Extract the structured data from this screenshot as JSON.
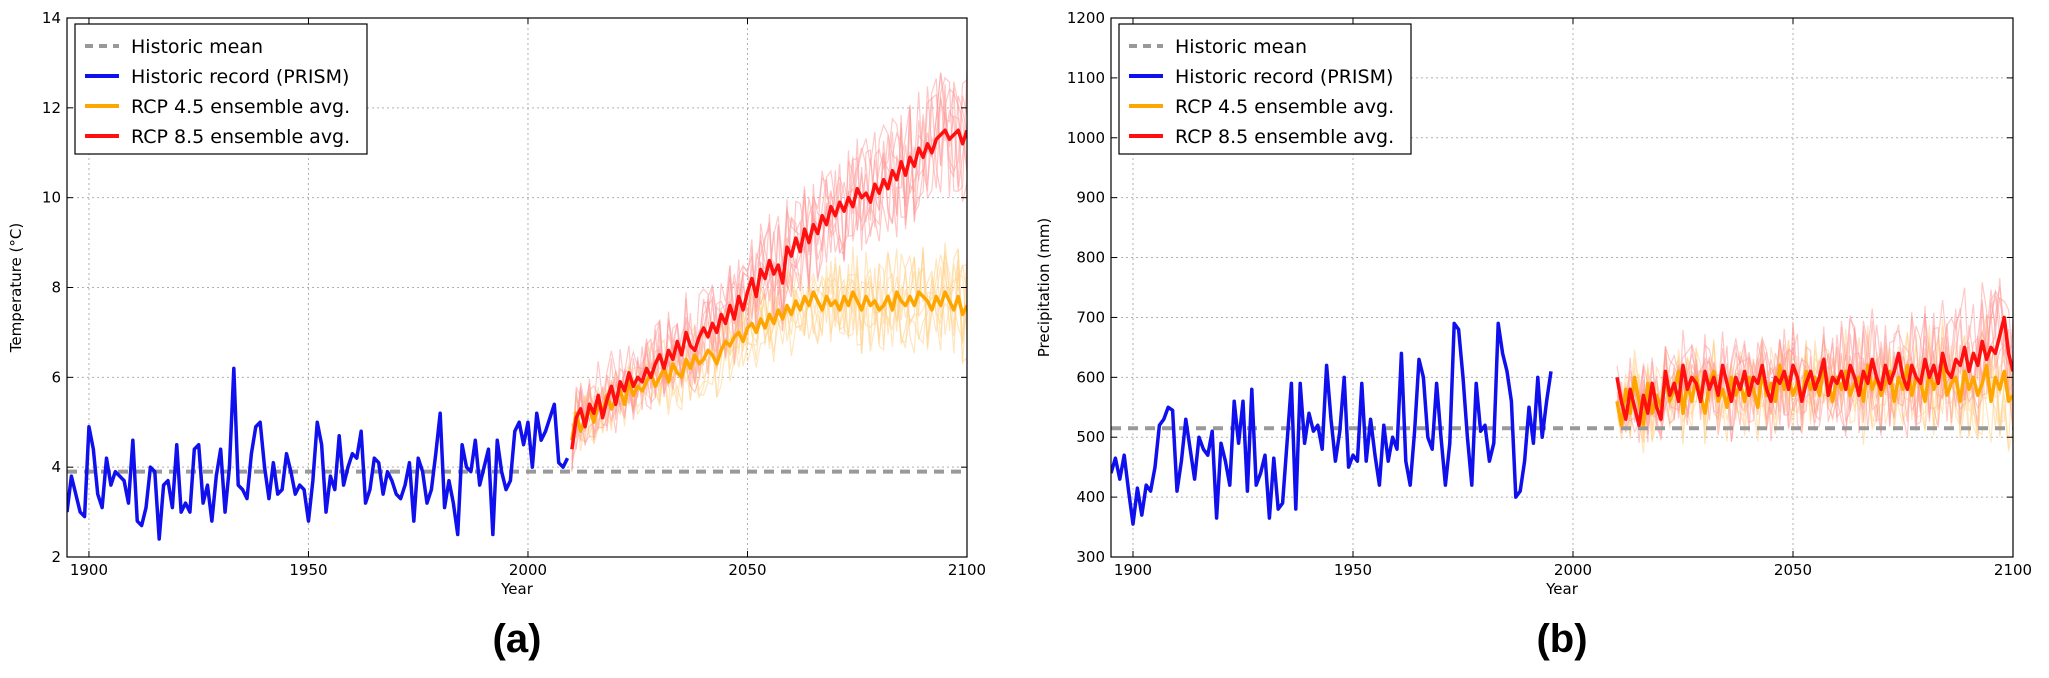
{
  "chart_data": [
    {
      "type": "line",
      "panel_label": "(a)",
      "xlabel": "Year",
      "ylabel": "Temperature (°C)",
      "xlim": [
        1895,
        2100
      ],
      "ylim": [
        2,
        14
      ],
      "xticks": [
        1900,
        1950,
        2000,
        2050,
        2100
      ],
      "yticks": [
        2,
        4,
        6,
        8,
        10,
        12,
        14
      ],
      "grid": true,
      "legend_position": "top-left",
      "colors": {
        "historic_mean": "#999999",
        "historic_record": "#1010ee",
        "rcp45": "#ffa500",
        "rcp85": "#ff0f0f",
        "rcp45_members": "#ffd28a",
        "rcp85_members": "#ff9a9a"
      },
      "legend": [
        {
          "label": "Historic mean",
          "key": "historic_mean",
          "style": "dashed"
        },
        {
          "label": "Historic record (PRISM)",
          "key": "historic_record",
          "style": "solid"
        },
        {
          "label": "RCP 4.5 ensemble avg.",
          "key": "rcp45",
          "style": "solid"
        },
        {
          "label": "RCP 8.5 ensemble avg.",
          "key": "rcp85",
          "style": "solid"
        }
      ],
      "historic_mean": 3.9,
      "historic_record": {
        "x_start": 1895,
        "values": [
          3.0,
          3.8,
          3.4,
          3.0,
          2.9,
          4.9,
          4.4,
          3.4,
          3.1,
          4.2,
          3.6,
          3.9,
          3.8,
          3.7,
          3.2,
          4.6,
          2.8,
          2.7,
          3.1,
          4.0,
          3.9,
          2.4,
          3.6,
          3.7,
          3.1,
          4.5,
          3.0,
          3.2,
          3.0,
          4.4,
          4.5,
          3.2,
          3.6,
          2.8,
          3.8,
          4.4,
          3.0,
          4.0,
          6.2,
          3.6,
          3.5,
          3.3,
          4.3,
          4.9,
          5.0,
          4.0,
          3.3,
          4.1,
          3.4,
          3.5,
          4.3,
          3.9,
          3.4,
          3.6,
          3.5,
          2.8,
          3.7,
          5.0,
          4.5,
          3.0,
          3.8,
          3.5,
          4.7,
          3.6,
          4.0,
          4.3,
          4.2,
          4.8,
          3.2,
          3.5,
          4.2,
          4.1,
          3.4,
          3.9,
          3.7,
          3.4,
          3.3,
          3.6,
          4.1,
          2.8,
          4.2,
          3.9,
          3.2,
          3.5,
          4.3,
          5.2,
          3.1,
          3.7,
          3.2,
          2.5,
          4.5,
          4.0,
          3.9,
          4.6,
          3.6,
          4.0,
          4.4,
          2.5,
          4.6,
          3.9,
          3.5,
          3.7,
          4.8,
          5.0,
          4.5,
          5.0,
          4.0,
          5.2,
          4.6,
          4.8,
          5.1,
          5.4,
          4.1,
          4.0,
          4.2
        ]
      },
      "rcp45": {
        "x_start": 2010,
        "values": [
          4.6,
          5.2,
          4.8,
          5.1,
          5.3,
          5.0,
          5.4,
          5.2,
          5.6,
          5.3,
          5.5,
          5.7,
          5.4,
          5.9,
          5.6,
          5.8,
          5.7,
          5.9,
          6.1,
          5.8,
          6.0,
          6.2,
          5.9,
          6.3,
          6.1,
          6.0,
          6.4,
          6.2,
          6.5,
          6.3,
          6.4,
          6.6,
          6.5,
          6.3,
          6.6,
          6.8,
          6.7,
          6.9,
          7.0,
          6.8,
          7.1,
          7.2,
          7.0,
          7.3,
          7.1,
          7.4,
          7.2,
          7.5,
          7.3,
          7.6,
          7.4,
          7.7,
          7.5,
          7.8,
          7.6,
          7.9,
          7.7,
          7.5,
          7.8,
          7.6,
          7.7,
          7.5,
          7.8,
          7.6,
          7.9,
          7.7,
          7.5,
          7.8,
          7.6,
          7.7,
          7.5,
          7.6,
          7.8,
          7.5,
          7.9,
          7.7,
          7.6,
          7.8,
          7.6,
          7.9,
          7.8,
          7.7,
          7.5,
          7.8,
          7.6,
          7.9,
          7.7,
          7.5,
          7.8,
          7.4,
          7.6
        ]
      },
      "rcp85": {
        "x_start": 2010,
        "values": [
          4.4,
          5.1,
          5.3,
          4.9,
          5.4,
          5.2,
          5.6,
          5.1,
          5.5,
          5.8,
          5.4,
          5.9,
          5.7,
          6.1,
          5.8,
          6.0,
          5.9,
          6.2,
          6.0,
          6.3,
          6.5,
          6.2,
          6.6,
          6.4,
          6.8,
          6.5,
          7.0,
          6.7,
          6.6,
          6.9,
          7.1,
          6.9,
          7.2,
          7.0,
          7.4,
          7.2,
          7.6,
          7.3,
          7.8,
          7.5,
          7.9,
          8.2,
          7.8,
          8.4,
          8.2,
          8.6,
          8.3,
          8.5,
          8.1,
          8.9,
          8.7,
          9.1,
          8.8,
          9.3,
          9.0,
          9.4,
          9.2,
          9.6,
          9.4,
          9.8,
          9.6,
          9.9,
          9.7,
          10.0,
          9.8,
          10.2,
          10.0,
          10.1,
          9.9,
          10.3,
          10.1,
          10.4,
          10.2,
          10.6,
          10.4,
          10.8,
          10.5,
          10.9,
          10.7,
          11.1,
          10.9,
          11.2,
          11.0,
          11.3,
          11.4,
          11.5,
          11.3,
          11.4,
          11.5,
          11.2,
          11.5
        ]
      }
    },
    {
      "type": "line",
      "panel_label": "(b)",
      "xlabel": "Year",
      "ylabel": "Precipitation (mm)",
      "xlim": [
        1895,
        2100
      ],
      "ylim": [
        300,
        1200
      ],
      "xticks": [
        1900,
        1950,
        2000,
        2050,
        2100
      ],
      "yticks": [
        300,
        400,
        500,
        600,
        700,
        800,
        900,
        1000,
        1100,
        1200
      ],
      "grid": true,
      "legend_position": "top-left",
      "colors": {
        "historic_mean": "#999999",
        "historic_record": "#1010ee",
        "rcp45": "#ffa500",
        "rcp85": "#ff0f0f",
        "rcp45_members": "#ffd28a",
        "rcp85_members": "#ff9a9a"
      },
      "legend": [
        {
          "label": "Historic mean",
          "key": "historic_mean",
          "style": "dashed"
        },
        {
          "label": "Historic record (PRISM)",
          "key": "historic_record",
          "style": "solid"
        },
        {
          "label": "RCP 4.5 ensemble avg.",
          "key": "rcp45",
          "style": "solid"
        },
        {
          "label": "RCP 8.5 ensemble avg.",
          "key": "rcp85",
          "style": "solid"
        }
      ],
      "historic_mean": 515,
      "historic_record": {
        "x_start": 1895,
        "values": [
          440,
          465,
          430,
          470,
          410,
          355,
          415,
          370,
          420,
          410,
          450,
          520,
          530,
          550,
          545,
          410,
          460,
          530,
          480,
          430,
          500,
          480,
          470,
          510,
          365,
          490,
          460,
          420,
          560,
          490,
          560,
          410,
          580,
          420,
          440,
          470,
          365,
          465,
          380,
          390,
          490,
          590,
          380,
          590,
          490,
          540,
          510,
          520,
          480,
          620,
          530,
          460,
          510,
          600,
          450,
          470,
          460,
          590,
          460,
          530,
          470,
          420,
          520,
          460,
          500,
          480,
          640,
          460,
          420,
          510,
          630,
          600,
          500,
          480,
          590,
          500,
          420,
          490,
          690,
          680,
          600,
          500,
          420,
          590,
          510,
          520,
          460,
          490,
          690,
          640,
          610,
          560,
          400,
          410,
          460,
          550,
          490,
          600,
          500,
          560,
          610
        ]
      },
      "rcp45": {
        "x_start": 2010,
        "values": [
          560,
          520,
          580,
          540,
          600,
          560,
          520,
          590,
          540,
          570,
          550,
          600,
          560,
          580,
          610,
          540,
          590,
          560,
          600,
          570,
          540,
          590,
          610,
          560,
          580,
          550,
          600,
          570,
          590,
          560,
          600,
          580,
          550,
          610,
          570,
          590,
          560,
          620,
          580,
          600,
          570,
          590,
          560,
          610,
          580,
          600,
          570,
          620,
          590,
          560,
          600,
          580,
          610,
          570,
          590,
          600,
          560,
          620,
          580,
          600,
          570,
          590,
          610,
          560,
          600,
          580,
          620,
          570,
          600,
          590,
          560,
          610,
          580,
          600,
          620,
          570,
          590,
          600,
          560,
          610,
          580,
          600,
          570,
          590,
          620,
          560,
          600,
          580,
          610,
          560,
          570
        ]
      },
      "rcp85": {
        "x_start": 2010,
        "values": [
          600,
          560,
          530,
          580,
          550,
          520,
          570,
          540,
          590,
          550,
          530,
          610,
          570,
          590,
          560,
          620,
          580,
          600,
          590,
          560,
          610,
          580,
          600,
          570,
          620,
          590,
          560,
          600,
          580,
          610,
          570,
          600,
          590,
          620,
          580,
          560,
          600,
          590,
          610,
          580,
          620,
          600,
          560,
          590,
          610,
          580,
          600,
          630,
          570,
          600,
          590,
          610,
          580,
          620,
          600,
          570,
          610,
          590,
          630,
          600,
          580,
          620,
          590,
          610,
          640,
          600,
          580,
          620,
          600,
          590,
          630,
          600,
          620,
          590,
          640,
          610,
          600,
          630,
          620,
          650,
          610,
          640,
          620,
          660,
          630,
          650,
          640,
          670,
          700,
          640,
          610
        ]
      }
    }
  ]
}
